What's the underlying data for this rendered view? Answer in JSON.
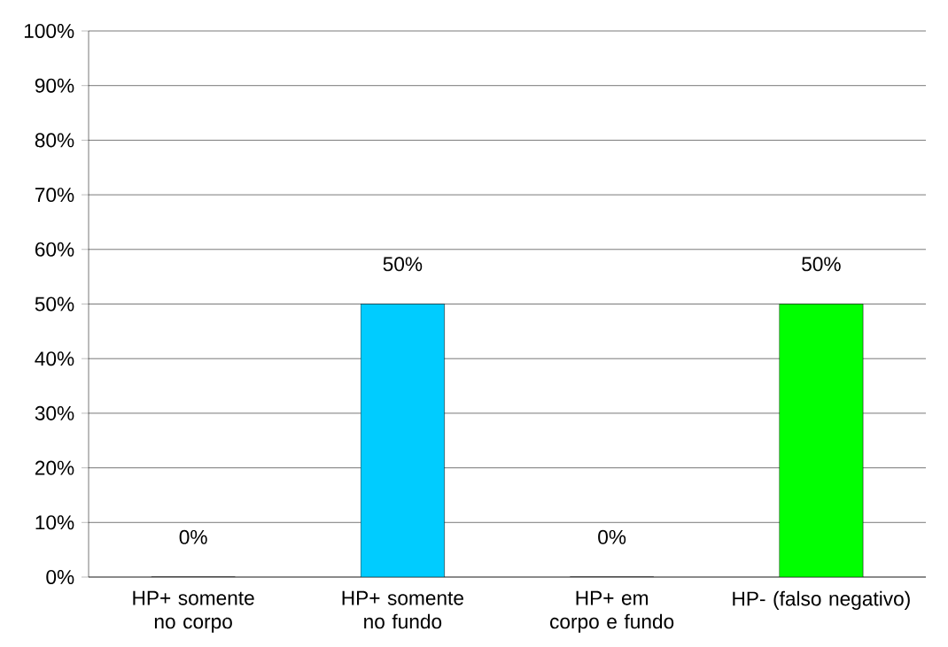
{
  "chart_data": {
    "type": "bar",
    "categories": [
      "HP+ somente no corpo",
      "HP+ somente no fundo",
      "HP+ em corpo e fundo",
      "HP- (falso negativo)"
    ],
    "values": [
      0,
      50,
      0,
      50
    ],
    "colors": [
      "#004c99",
      "#00ccff",
      "#0000cc",
      "#00ff00"
    ],
    "value_labels": [
      "0%",
      "50%",
      "0%",
      "50%"
    ],
    "ylim": [
      0,
      100
    ],
    "yticks": [
      {
        "value": 0,
        "label": "0%"
      },
      {
        "value": 10,
        "label": "10%"
      },
      {
        "value": 20,
        "label": "20%"
      },
      {
        "value": 30,
        "label": "30%"
      },
      {
        "value": 40,
        "label": "40%"
      },
      {
        "value": 50,
        "label": "50%"
      },
      {
        "value": 60,
        "label": "60%"
      },
      {
        "value": 70,
        "label": "70%"
      },
      {
        "value": 80,
        "label": "80%"
      },
      {
        "value": 90,
        "label": "90%"
      },
      {
        "value": 100,
        "label": "100%"
      }
    ],
    "grid": "y"
  }
}
